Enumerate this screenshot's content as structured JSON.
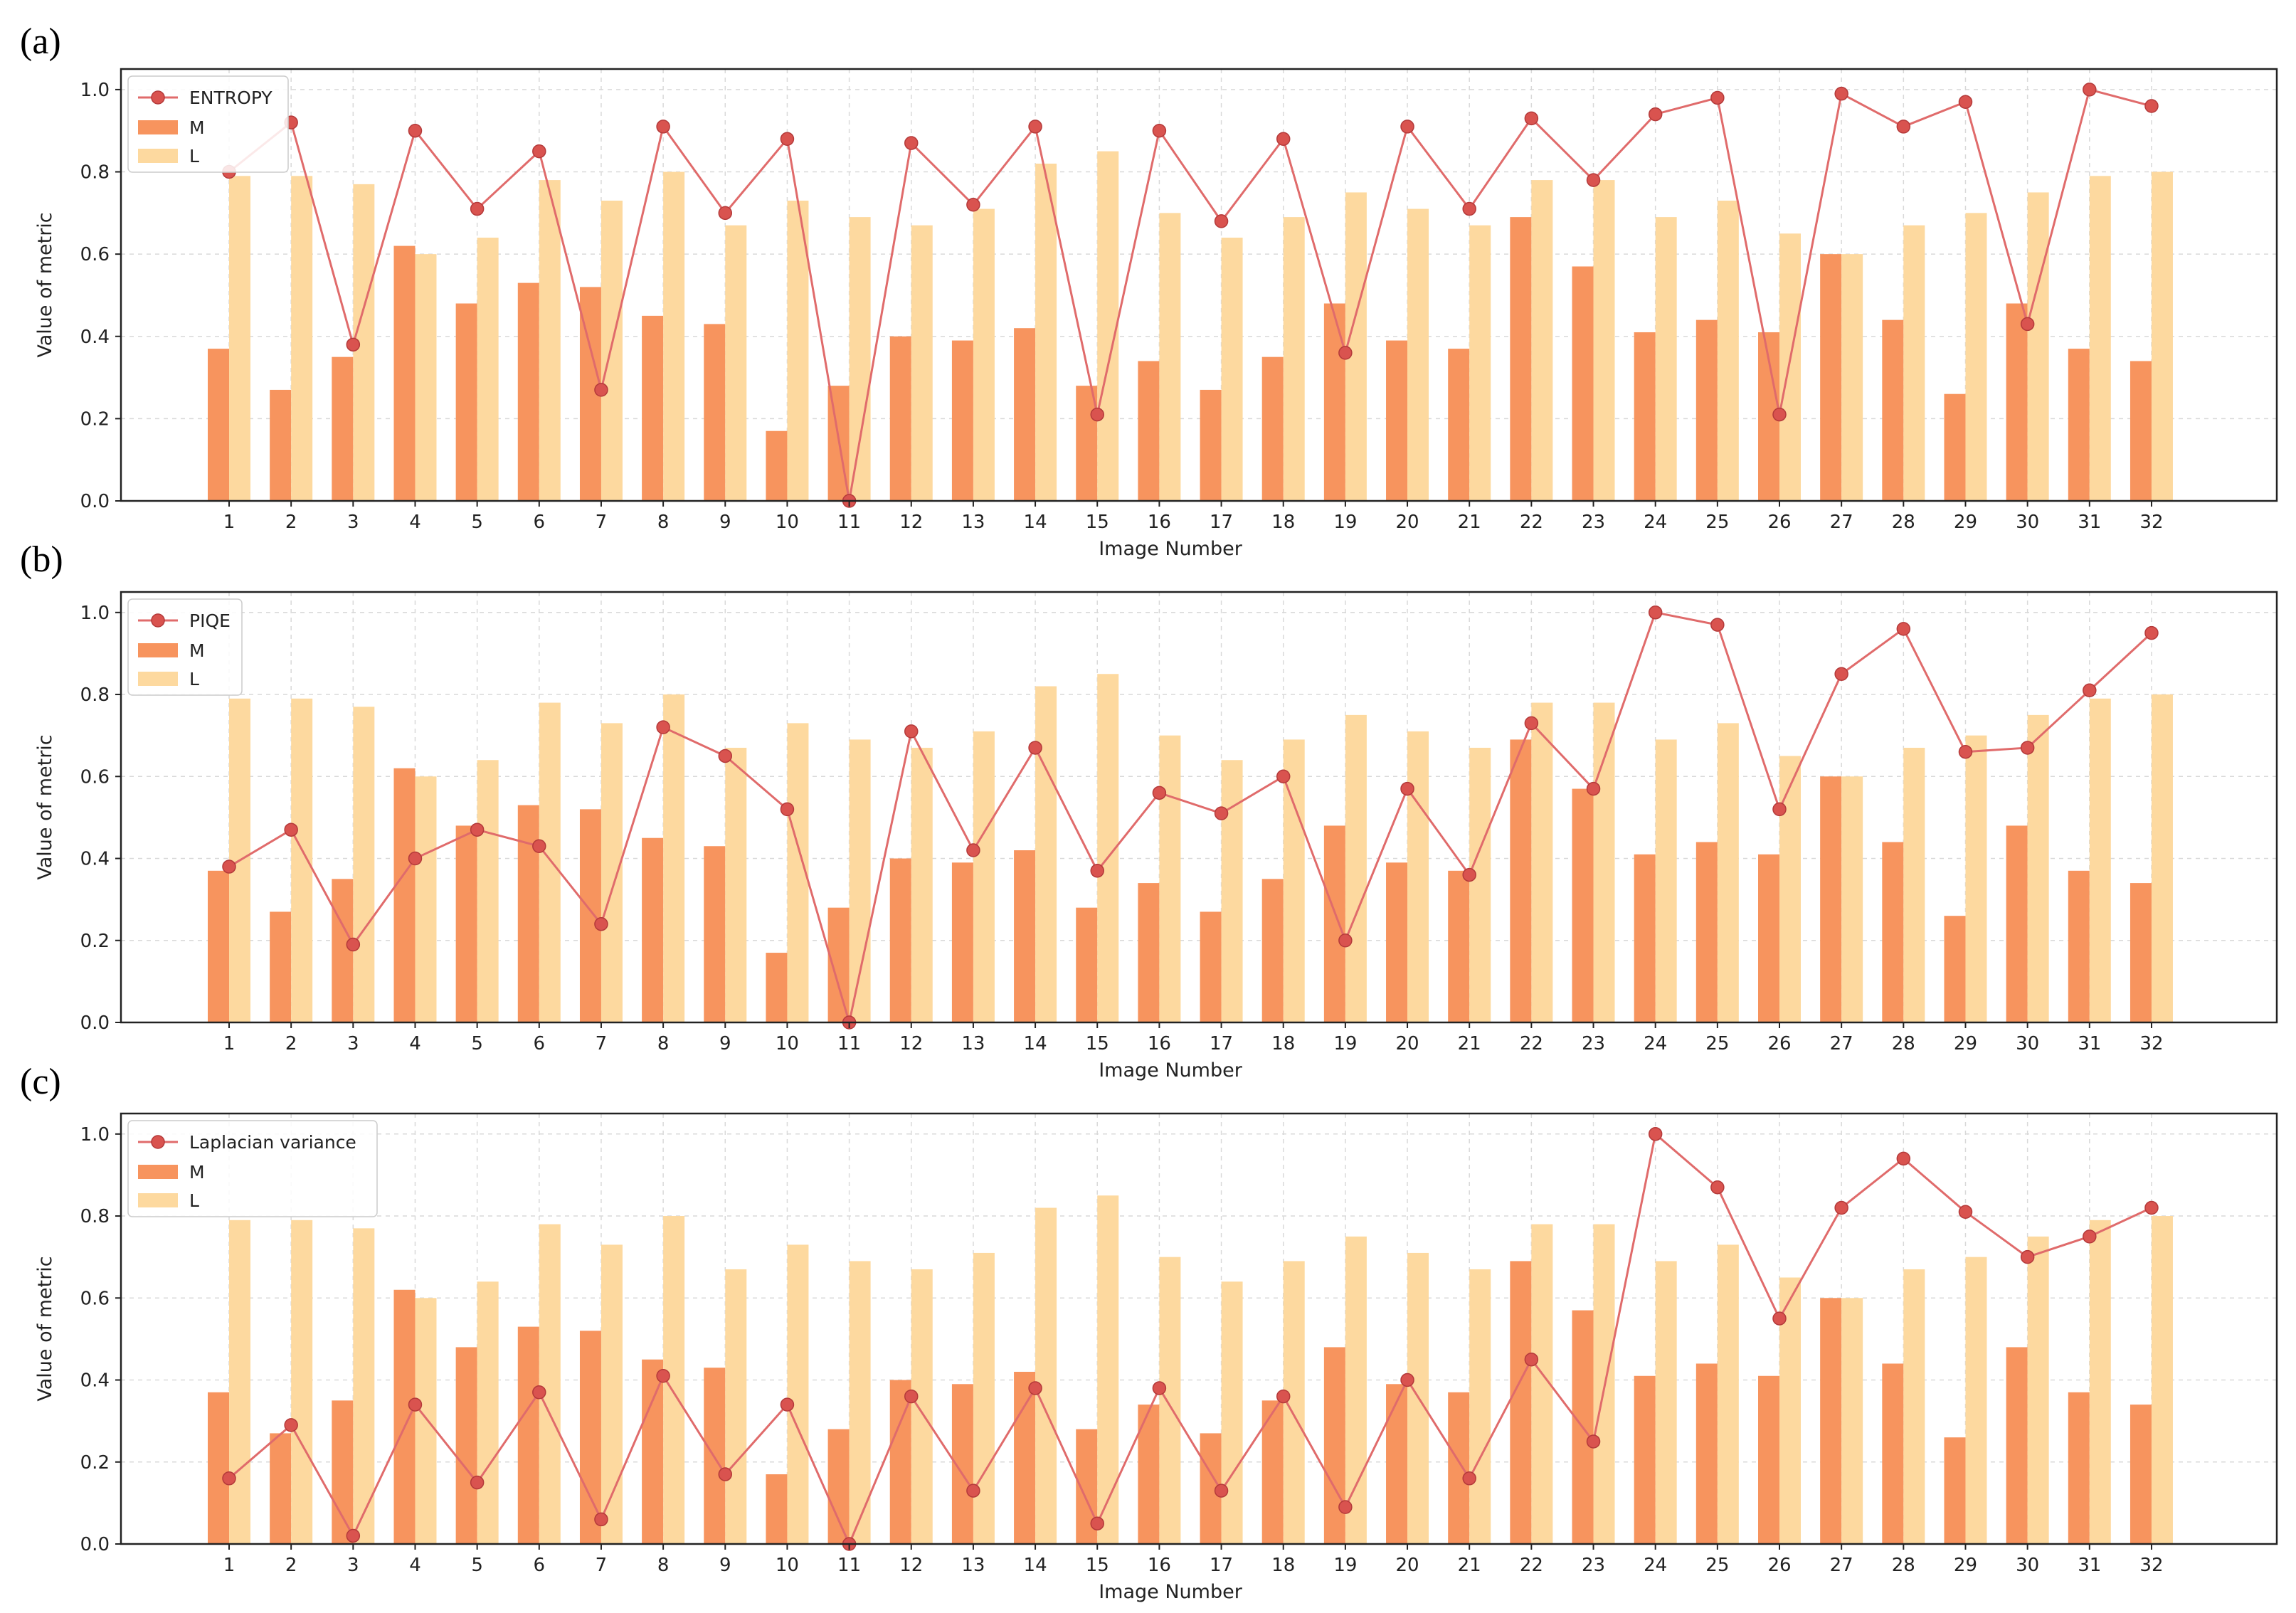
{
  "chart_data": [
    {
      "type": "bar",
      "panel_label": "(a)",
      "title": "",
      "xlabel": "Image Number",
      "ylabel": "Value of metric",
      "ylim": [
        0,
        1.05
      ],
      "yticks": [
        "0.0",
        "0.2",
        "0.4",
        "0.6",
        "0.8",
        "1.0"
      ],
      "grid": true,
      "legend_position": "top-left",
      "categories": [
        "1",
        "2",
        "3",
        "4",
        "5",
        "6",
        "7",
        "8",
        "9",
        "10",
        "11",
        "12",
        "13",
        "14",
        "15",
        "16",
        "17",
        "18",
        "19",
        "20",
        "21",
        "22",
        "23",
        "24",
        "25",
        "26",
        "27",
        "28",
        "29",
        "30",
        "31",
        "32"
      ],
      "series": [
        {
          "name": "ENTROPY",
          "kind": "line",
          "color": "#d9534f",
          "values": [
            0.8,
            0.92,
            0.38,
            0.9,
            0.71,
            0.85,
            0.27,
            0.91,
            0.7,
            0.88,
            0.0,
            0.87,
            0.72,
            0.91,
            0.21,
            0.9,
            0.68,
            0.88,
            0.36,
            0.91,
            0.71,
            0.93,
            0.78,
            0.94,
            0.98,
            0.21,
            0.99,
            0.91,
            0.97,
            0.43,
            1.0,
            0.96
          ]
        },
        {
          "name": "M",
          "kind": "bar",
          "color": "#f7945e",
          "values": [
            0.37,
            0.27,
            0.35,
            0.62,
            0.48,
            0.53,
            0.52,
            0.45,
            0.43,
            0.17,
            0.28,
            0.4,
            0.39,
            0.42,
            0.28,
            0.34,
            0.27,
            0.35,
            0.48,
            0.39,
            0.37,
            0.69,
            0.57,
            0.41,
            0.44,
            0.41,
            0.6,
            0.44,
            0.26,
            0.48,
            0.37,
            0.34
          ]
        },
        {
          "name": "L",
          "kind": "bar",
          "color": "#fdd99f",
          "values": [
            0.79,
            0.79,
            0.77,
            0.6,
            0.64,
            0.78,
            0.73,
            0.8,
            0.67,
            0.73,
            0.69,
            0.67,
            0.71,
            0.82,
            0.85,
            0.7,
            0.64,
            0.69,
            0.75,
            0.71,
            0.67,
            0.78,
            0.78,
            0.69,
            0.73,
            0.65,
            0.6,
            0.67,
            0.7,
            0.75,
            0.79,
            0.8
          ]
        }
      ]
    },
    {
      "type": "bar",
      "panel_label": "(b)",
      "title": "",
      "xlabel": "Image Number",
      "ylabel": "Value of metric",
      "ylim": [
        0,
        1.05
      ],
      "yticks": [
        "0.0",
        "0.2",
        "0.4",
        "0.6",
        "0.8",
        "1.0"
      ],
      "grid": true,
      "legend_position": "top-left",
      "categories": [
        "1",
        "2",
        "3",
        "4",
        "5",
        "6",
        "7",
        "8",
        "9",
        "10",
        "11",
        "12",
        "13",
        "14",
        "15",
        "16",
        "17",
        "18",
        "19",
        "20",
        "21",
        "22",
        "23",
        "24",
        "25",
        "26",
        "27",
        "28",
        "29",
        "30",
        "31",
        "32"
      ],
      "series": [
        {
          "name": "PIQE",
          "kind": "line",
          "color": "#d9534f",
          "values": [
            0.38,
            0.47,
            0.19,
            0.4,
            0.47,
            0.43,
            0.24,
            0.72,
            0.65,
            0.52,
            0.0,
            0.71,
            0.42,
            0.67,
            0.37,
            0.56,
            0.51,
            0.6,
            0.2,
            0.57,
            0.36,
            0.73,
            0.57,
            1.0,
            0.97,
            0.52,
            0.85,
            0.96,
            0.66,
            0.67,
            0.81,
            0.95
          ]
        },
        {
          "name": "M",
          "kind": "bar",
          "color": "#f7945e",
          "values": [
            0.37,
            0.27,
            0.35,
            0.62,
            0.48,
            0.53,
            0.52,
            0.45,
            0.43,
            0.17,
            0.28,
            0.4,
            0.39,
            0.42,
            0.28,
            0.34,
            0.27,
            0.35,
            0.48,
            0.39,
            0.37,
            0.69,
            0.57,
            0.41,
            0.44,
            0.41,
            0.6,
            0.44,
            0.26,
            0.48,
            0.37,
            0.34
          ]
        },
        {
          "name": "L",
          "kind": "bar",
          "color": "#fdd99f",
          "values": [
            0.79,
            0.79,
            0.77,
            0.6,
            0.64,
            0.78,
            0.73,
            0.8,
            0.67,
            0.73,
            0.69,
            0.67,
            0.71,
            0.82,
            0.85,
            0.7,
            0.64,
            0.69,
            0.75,
            0.71,
            0.67,
            0.78,
            0.78,
            0.69,
            0.73,
            0.65,
            0.6,
            0.67,
            0.7,
            0.75,
            0.79,
            0.8
          ]
        }
      ]
    },
    {
      "type": "bar",
      "panel_label": "(c)",
      "title": "",
      "xlabel": "Image Number",
      "ylabel": "Value of metric",
      "ylim": [
        0,
        1.05
      ],
      "yticks": [
        "0.0",
        "0.2",
        "0.4",
        "0.6",
        "0.8",
        "1.0"
      ],
      "grid": true,
      "legend_position": "top-left",
      "categories": [
        "1",
        "2",
        "3",
        "4",
        "5",
        "6",
        "7",
        "8",
        "9",
        "10",
        "11",
        "12",
        "13",
        "14",
        "15",
        "16",
        "17",
        "18",
        "19",
        "20",
        "21",
        "22",
        "23",
        "24",
        "25",
        "26",
        "27",
        "28",
        "29",
        "30",
        "31",
        "32"
      ],
      "series": [
        {
          "name": "Laplacian variance",
          "kind": "line",
          "color": "#d9534f",
          "values": [
            0.16,
            0.29,
            0.02,
            0.34,
            0.15,
            0.37,
            0.06,
            0.41,
            0.17,
            0.34,
            0.0,
            0.36,
            0.13,
            0.38,
            0.05,
            0.38,
            0.13,
            0.36,
            0.09,
            0.4,
            0.16,
            0.45,
            0.25,
            1.0,
            0.87,
            0.55,
            0.82,
            0.94,
            0.81,
            0.7,
            0.75,
            0.82
          ]
        },
        {
          "name": "M",
          "kind": "bar",
          "color": "#f7945e",
          "values": [
            0.37,
            0.27,
            0.35,
            0.62,
            0.48,
            0.53,
            0.52,
            0.45,
            0.43,
            0.17,
            0.28,
            0.4,
            0.39,
            0.42,
            0.28,
            0.34,
            0.27,
            0.35,
            0.48,
            0.39,
            0.37,
            0.69,
            0.57,
            0.41,
            0.44,
            0.41,
            0.6,
            0.44,
            0.26,
            0.48,
            0.37,
            0.34
          ]
        },
        {
          "name": "L",
          "kind": "bar",
          "color": "#fdd99f",
          "values": [
            0.79,
            0.79,
            0.77,
            0.6,
            0.64,
            0.78,
            0.73,
            0.8,
            0.67,
            0.73,
            0.69,
            0.67,
            0.71,
            0.82,
            0.85,
            0.7,
            0.64,
            0.69,
            0.75,
            0.71,
            0.67,
            0.78,
            0.78,
            0.69,
            0.73,
            0.65,
            0.6,
            0.67,
            0.7,
            0.75,
            0.79,
            0.8
          ]
        }
      ]
    }
  ]
}
